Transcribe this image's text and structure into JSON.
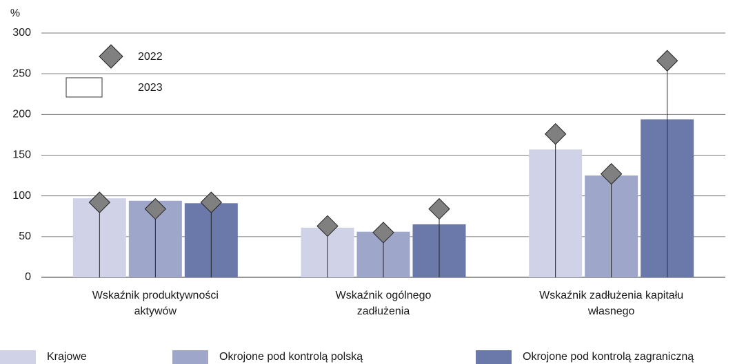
{
  "chart_data": {
    "type": "bar",
    "y_unit": "%",
    "categories": [
      "Wskaźnik produktywności aktywów",
      "Wskaźnik ogólnego zadłużenia",
      "Wskaźnik zadłużenia kapitału własnego"
    ],
    "bar_label": "2023",
    "marker_label": "2022",
    "marker_color": "#808080",
    "series": [
      {
        "name": "Krajowe",
        "color": "#d0d3e8",
        "values": [
          97,
          61,
          157
        ],
        "markers": [
          92,
          63,
          176
        ]
      },
      {
        "name": "Okrojone pod kontrolą polską",
        "color": "#9ea6c9",
        "values": [
          94,
          56,
          125
        ],
        "markers": [
          84,
          55,
          127
        ]
      },
      {
        "name": "Okrojone pod kontrolą zagraniczną",
        "color": "#6b79aa",
        "values": [
          91,
          65,
          194
        ],
        "markers": [
          92,
          84,
          266
        ]
      }
    ],
    "ylim": [
      0,
      300
    ],
    "yticks": [
      0,
      50,
      100,
      150,
      200,
      250,
      300
    ],
    "grid": true
  }
}
